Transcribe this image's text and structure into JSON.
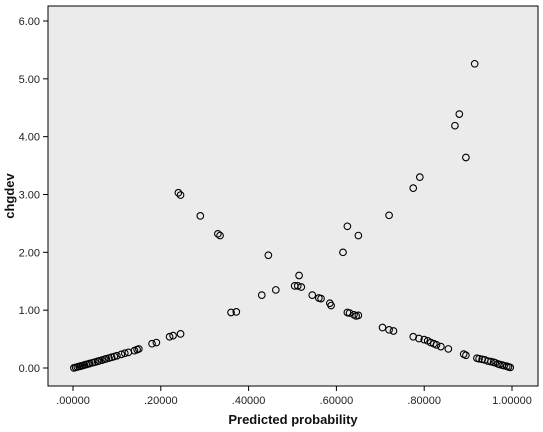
{
  "chart_data": {
    "type": "scatter",
    "title": "",
    "xlabel": "Predicted probability",
    "ylabel": "chgdev",
    "xlim": [
      0.0,
      1.0
    ],
    "ylim": [
      0.0,
      6.0
    ],
    "x_ticks": [
      0.0,
      0.2,
      0.4,
      0.6,
      0.8,
      1.0
    ],
    "x_tick_labels": [
      ".00000",
      ".20000",
      ".40000",
      ".60000",
      ".80000",
      "1.00000"
    ],
    "y_ticks": [
      0,
      1,
      2,
      3,
      4,
      5,
      6
    ],
    "y_tick_labels": [
      "0.00",
      "1.00",
      "2.00",
      "3.00",
      "4.00",
      "5.00",
      "6.00"
    ],
    "grid": false,
    "legend": "none",
    "marker": "hollow-circle",
    "colors": {
      "background": "#ffffff",
      "plot_area": "#ebebeb",
      "marker_stroke": "#000000",
      "axis": "#000000"
    },
    "series": [
      {
        "x": [
          0.002,
          0.006,
          0.01,
          0.014,
          0.018,
          0.022,
          0.026,
          0.03,
          0.034,
          0.038,
          0.044,
          0.05,
          0.056,
          0.06,
          0.066,
          0.072,
          0.076,
          0.082,
          0.088,
          0.094,
          0.1,
          0.11,
          0.118,
          0.126,
          0.14,
          0.146,
          0.15,
          0.18,
          0.19,
          0.22,
          0.228,
          0.245,
          0.36,
          0.372,
          0.43,
          0.462,
          0.505,
          0.512,
          0.52,
          0.545,
          0.56,
          0.565,
          0.585,
          0.588,
          0.625,
          0.63,
          0.64,
          0.645,
          0.65,
          0.705,
          0.72,
          0.73,
          0.775,
          0.788,
          0.8,
          0.808,
          0.815,
          0.822,
          0.828,
          0.838,
          0.855,
          0.89,
          0.895,
          0.92,
          0.925,
          0.932,
          0.938,
          0.945,
          0.952,
          0.958,
          0.962,
          0.968,
          0.972,
          0.978,
          0.982,
          0.988,
          0.992,
          0.996
        ],
        "y": [
          0.002,
          0.01,
          0.018,
          0.026,
          0.034,
          0.042,
          0.052,
          0.06,
          0.068,
          0.078,
          0.09,
          0.102,
          0.114,
          0.124,
          0.136,
          0.15,
          0.16,
          0.172,
          0.186,
          0.198,
          0.212,
          0.236,
          0.255,
          0.27,
          0.3,
          0.318,
          0.33,
          0.42,
          0.44,
          0.54,
          0.56,
          0.59,
          0.96,
          0.97,
          1.26,
          1.35,
          1.42,
          1.42,
          1.4,
          1.26,
          1.21,
          1.2,
          1.12,
          1.08,
          0.96,
          0.95,
          0.92,
          0.9,
          0.91,
          0.7,
          0.66,
          0.64,
          0.54,
          0.51,
          0.49,
          0.47,
          0.44,
          0.42,
          0.4,
          0.37,
          0.33,
          0.24,
          0.22,
          0.17,
          0.16,
          0.15,
          0.14,
          0.12,
          0.11,
          0.1,
          0.09,
          0.07,
          0.06,
          0.05,
          0.04,
          0.03,
          0.02,
          0.01
        ]
      },
      {
        "x": [
          0.24,
          0.245,
          0.29,
          0.33,
          0.335,
          0.445,
          0.515,
          0.615,
          0.625,
          0.65,
          0.72,
          0.775,
          0.79,
          0.87,
          0.88,
          0.895,
          0.915
        ],
        "y": [
          3.03,
          2.99,
          2.63,
          2.32,
          2.29,
          1.95,
          1.6,
          2.0,
          2.45,
          2.29,
          2.64,
          3.11,
          3.3,
          4.19,
          4.39,
          3.64,
          5.26
        ]
      }
    ]
  }
}
